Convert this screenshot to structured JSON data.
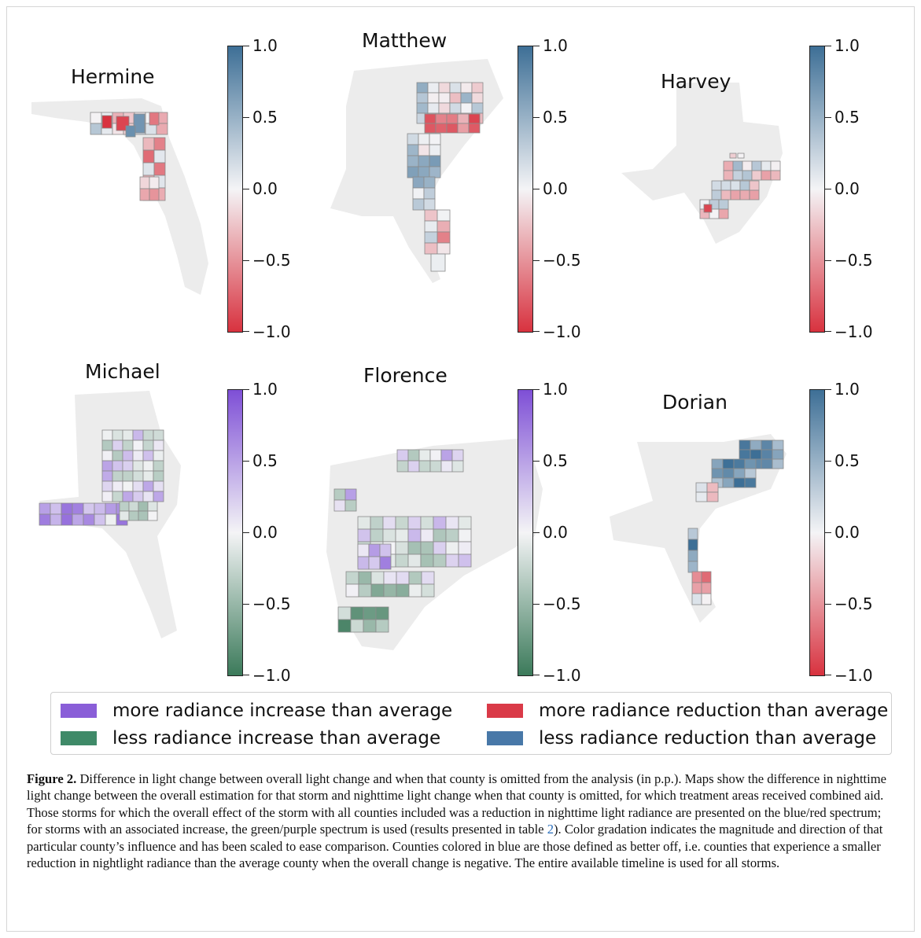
{
  "panels": [
    {
      "title": "Hermine",
      "palette": "blue-red",
      "ticks": [
        "1.0",
        "0.5",
        "0.0",
        "−0.5",
        "−1.0"
      ]
    },
    {
      "title": "Matthew",
      "palette": "blue-red",
      "ticks": [
        "1.0",
        "0.5",
        "0.0",
        "−0.5",
        "−1.0"
      ]
    },
    {
      "title": "Harvey",
      "palette": "blue-red",
      "ticks": [
        "1.0",
        "0.5",
        "0.0",
        "−0.5",
        "−1.0"
      ]
    },
    {
      "title": "Michael",
      "palette": "purple-green",
      "ticks": [
        "1.0",
        "0.5",
        "0.0",
        "−0.5",
        "−1.0"
      ]
    },
    {
      "title": "Florence",
      "palette": "purple-green",
      "ticks": [
        "1.0",
        "0.5",
        "0.0",
        "−0.5",
        "−1.0"
      ]
    },
    {
      "title": "Dorian",
      "palette": "blue-red",
      "ticks": [
        "1.0",
        "0.5",
        "0.0",
        "−0.5",
        "−1.0"
      ]
    }
  ],
  "colors": {
    "blue": "#3d6f96",
    "red": "#d8323f",
    "purple": "#7e4fd6",
    "green": "#3b7a5a",
    "neutral": "#f4f4f6",
    "land": "#ececec"
  },
  "legend": {
    "items": [
      {
        "label": "more radiance increase than average",
        "color": "#8a5ed8"
      },
      {
        "label": "more radiance reduction than average",
        "color": "#da3a48"
      },
      {
        "label": "less radiance increase than average",
        "color": "#3f8a68"
      },
      {
        "label": "less radiance reduction than average",
        "color": "#4878a8"
      }
    ]
  },
  "caption": {
    "label": "Figure 2.",
    "text_before_ref": " Difference in light change between overall light change and when that county is omitted from the analysis (in p.p.). Maps show the difference in nighttime light change between the overall estimation for that storm and nighttime light change when that county is omitted, for which treatment areas received combined aid. Those storms for which the overall effect of the storm with all counties included was a reduction in nighttime light radiance are presented on the blue/red spectrum; for storms with an associated increase, the green/purple spectrum is used (results presented in table ",
    "ref": "2",
    "text_after_ref": "). Color gradation indicates the magnitude and direction of that particular county’s influence and has been scaled to ease comparison. Counties colored in blue are those defined as better off, i.e. counties that experience a smaller reduction in nightlight radiance than the average county when the overall change is negative. The entire available timeline is used for all storms."
  }
}
